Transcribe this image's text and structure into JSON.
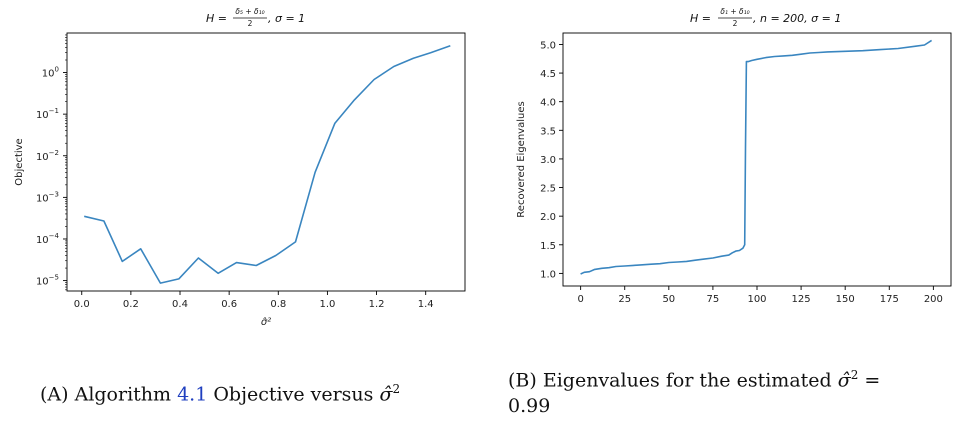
{
  "figure": {
    "caption_a": {
      "tag": "(A)",
      "pre": "Algorithm",
      "ref": "4.1",
      "post": "Objective versus",
      "sym": "σ̂",
      "sup": "2"
    },
    "caption_b": {
      "tag": "(B)",
      "pre": "Eigenvalues for the estimated",
      "sym": "σ̂",
      "sup": "2",
      "eq": "=",
      "value": "0.99"
    }
  },
  "chart_data": [
    {
      "type": "line",
      "title": {
        "lhs": "H =",
        "num": "δ₅ + δ₁₀",
        "den": "2",
        "rhs": ", σ = 1"
      },
      "xlabel": "σ̂²",
      "ylabel": "Objective",
      "yscale": "log",
      "xlim": [
        -0.06,
        1.56
      ],
      "ylim_log10": [
        -5.25,
        0.95
      ],
      "xticks": [
        0.0,
        0.2,
        0.4,
        0.6,
        0.8,
        1.0,
        1.2,
        1.4
      ],
      "xtick_labels": [
        "0.0",
        "0.2",
        "0.4",
        "0.6",
        "0.8",
        "1.0",
        "1.2",
        "1.4"
      ],
      "yticks_log10": [
        0,
        -1,
        -2,
        -3,
        -4,
        -5
      ],
      "ytick_labels": [
        {
          "base": "10",
          "exp": "0"
        },
        {
          "base": "10",
          "exp": "−1"
        },
        {
          "base": "10",
          "exp": "−2"
        },
        {
          "base": "10",
          "exp": "−3"
        },
        {
          "base": "10",
          "exp": "−4"
        },
        {
          "base": "10",
          "exp": "−5"
        }
      ],
      "color": "#3a86c0",
      "x": [
        0.01,
        0.09,
        0.165,
        0.24,
        0.32,
        0.395,
        0.475,
        0.555,
        0.63,
        0.71,
        0.79,
        0.87,
        0.95,
        1.03,
        1.11,
        1.19,
        1.27,
        1.35,
        1.42,
        1.5
      ],
      "y": [
        0.00035,
        0.00027,
        2.9e-05,
        5.8e-05,
        8.7e-06,
        1.1e-05,
        3.5e-05,
        1.5e-05,
        2.7e-05,
        2.3e-05,
        4e-05,
        8.5e-05,
        0.004,
        0.06,
        0.22,
        0.68,
        1.4,
        2.2,
        3.0,
        4.4
      ]
    },
    {
      "type": "line",
      "title": {
        "lhs": "H =",
        "num": "δ₁ + δ₁₀",
        "den": "2",
        "rhs": ", n = 200, σ = 1"
      },
      "xlabel": "",
      "ylabel": "Recovered Eigenvalues",
      "xlim": [
        -10,
        210
      ],
      "ylim": [
        0.78,
        5.2
      ],
      "xticks": [
        0,
        25,
        50,
        75,
        100,
        125,
        150,
        175,
        200
      ],
      "yticks": [
        1.0,
        1.5,
        2.0,
        2.5,
        3.0,
        3.5,
        4.0,
        4.5,
        5.0
      ],
      "color": "#3a86c0",
      "x": [
        0,
        2,
        5,
        8,
        12,
        16,
        20,
        25,
        30,
        35,
        40,
        45,
        50,
        55,
        60,
        65,
        70,
        75,
        80,
        84,
        86,
        88,
        90,
        92,
        93,
        93.5,
        94,
        95,
        97,
        100,
        105,
        110,
        115,
        120,
        125,
        130,
        135,
        140,
        150,
        160,
        170,
        180,
        190,
        195,
        199
      ],
      "y": [
        0.99,
        1.02,
        1.03,
        1.07,
        1.09,
        1.1,
        1.12,
        1.13,
        1.14,
        1.15,
        1.16,
        1.17,
        1.19,
        1.2,
        1.21,
        1.23,
        1.25,
        1.27,
        1.3,
        1.32,
        1.36,
        1.39,
        1.4,
        1.44,
        1.5,
        3.2,
        4.7,
        4.7,
        4.72,
        4.74,
        4.77,
        4.79,
        4.8,
        4.81,
        4.83,
        4.85,
        4.86,
        4.87,
        4.88,
        4.89,
        4.91,
        4.93,
        4.97,
        4.99,
        5.07
      ]
    }
  ]
}
